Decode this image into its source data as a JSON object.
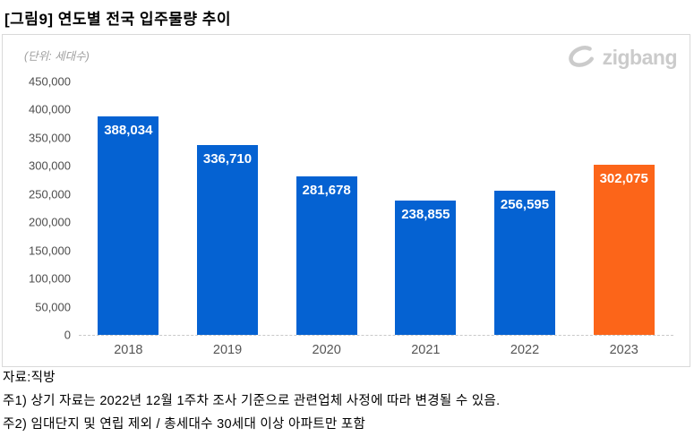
{
  "page": {
    "title": "[그림9] 연도별 전국 입주물량 추이"
  },
  "chart": {
    "unit_label": "(단위: 세대수)",
    "logo_text": "zigbang"
  },
  "chart_data": {
    "type": "bar",
    "title": "연도별 전국 입주물량 추이",
    "unit": "세대수",
    "categories": [
      "2018",
      "2019",
      "2020",
      "2021",
      "2022",
      "2023"
    ],
    "values": [
      388034,
      336710,
      281678,
      238855,
      256595,
      302075
    ],
    "value_labels": [
      "388,034",
      "336,710",
      "281,678",
      "238,855",
      "256,595",
      "302,075"
    ],
    "ylim": [
      0,
      450000
    ],
    "ytick_step": 50000,
    "grid": false,
    "legend": "none",
    "bar_colors": [
      "#0562d2",
      "#0562d2",
      "#0562d2",
      "#0562d2",
      "#0562d2",
      "#fc6519"
    ],
    "highlight_index": 5,
    "value_label_color": "#ffffff"
  },
  "footer": {
    "source": "자료:직방",
    "note1": "주1) 상기 자료는 2022년 12월 1주차 조사 기준으로 관련업체 사정에 따라 변경될 수 있음.",
    "note2": "주2) 임대단지 및 연립 제외 / 총세대수 30세대 이상 아파트만 포함"
  },
  "colors": {
    "bar_blue": "#0562d2",
    "bar_orange": "#fc6519",
    "axis_text": "#4d4d4d",
    "box_border": "#d9d9d9",
    "logo_gray": "#cbcbcb"
  }
}
